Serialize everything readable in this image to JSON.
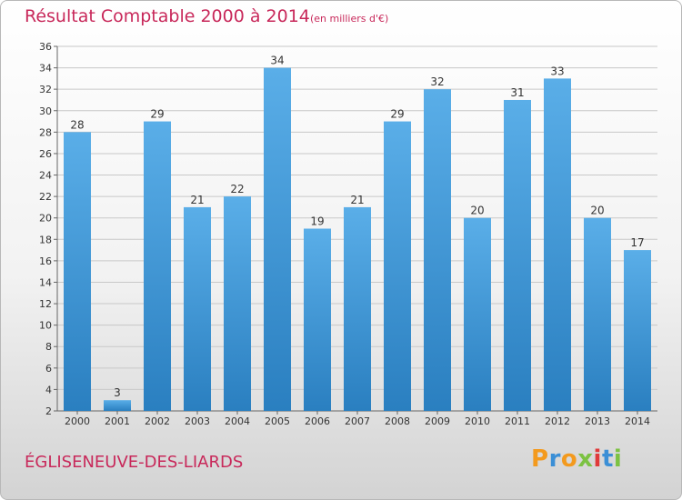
{
  "header": {
    "title": "Résultat Comptable 2000 à 2014",
    "subtitle": "(en milliers d'€)"
  },
  "footer": {
    "location": "ÉGLISENEUVE-DES-LIARDS",
    "brand": "Proxiti"
  },
  "colors": {
    "title": "#c8285a",
    "bar_top": "#5aaee8",
    "bar_bottom": "#2a7fc0",
    "grid": "#c8c8c8",
    "brand_letters": [
      "#f39a1e",
      "#3b8fd6",
      "#f39a1e",
      "#7cc242",
      "#e03a3a",
      "#3b8fd6",
      "#7cc242"
    ]
  },
  "chart_data": {
    "type": "bar",
    "categories": [
      "2000",
      "2001",
      "2002",
      "2003",
      "2004",
      "2005",
      "2006",
      "2007",
      "2008",
      "2009",
      "2010",
      "2011",
      "2012",
      "2013",
      "2014"
    ],
    "values": [
      28,
      3,
      29,
      21,
      22,
      34,
      19,
      21,
      29,
      32,
      20,
      31,
      33,
      20,
      17
    ],
    "title": "Résultat Comptable 2000 à 2014",
    "subtitle": "(en milliers d'€)",
    "xlabel": "",
    "ylabel": "",
    "ylim": [
      2,
      36
    ],
    "yticks": [
      2,
      4,
      6,
      8,
      10,
      12,
      14,
      16,
      18,
      20,
      22,
      24,
      26,
      28,
      30,
      32,
      34,
      36
    ],
    "grid": true,
    "data_labels": true
  }
}
